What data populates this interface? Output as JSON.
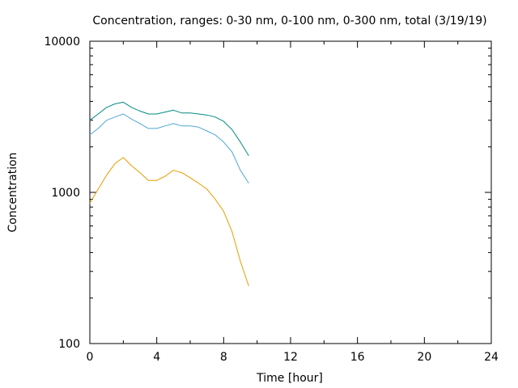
{
  "chart_data": {
    "type": "line",
    "title": "Concentration, ranges: 0-30 nm, 0-100 nm, 0-300 nm, total (3/19/19)",
    "xlabel": "Time [hour]",
    "ylabel": "Concentration",
    "xlim": [
      0,
      24
    ],
    "ylim": [
      100,
      10000
    ],
    "yscale": "log",
    "grid": false,
    "legend": "none",
    "x_ticks": [
      "0",
      "4",
      "8",
      "12",
      "16",
      "20",
      "24"
    ],
    "y_ticks": [
      "100",
      "1000",
      "10000"
    ],
    "series": [
      {
        "color": "#008b80",
        "x": [
          0,
          0.5,
          1,
          1.5,
          2,
          2.5,
          3,
          3.5,
          4,
          4.5,
          5,
          5.5,
          6,
          6.5,
          7,
          7.5,
          8,
          8.5,
          9,
          9.5
        ],
        "y": [
          3000,
          3300,
          3650,
          3850,
          3950,
          3650,
          3450,
          3300,
          3300,
          3400,
          3500,
          3350,
          3350,
          3300,
          3250,
          3150,
          2950,
          2600,
          2150,
          1750
        ]
      },
      {
        "color": "#4fa7d4",
        "x": [
          0,
          0.5,
          1,
          1.5,
          2,
          2.5,
          3,
          3.5,
          4,
          4.5,
          5,
          5.5,
          6,
          6.5,
          7,
          7.5,
          8,
          8.5,
          9,
          9.5
        ],
        "y": [
          2400,
          2650,
          3000,
          3150,
          3300,
          3050,
          2850,
          2650,
          2650,
          2750,
          2850,
          2750,
          2750,
          2700,
          2550,
          2400,
          2150,
          1850,
          1400,
          1150
        ]
      },
      {
        "color": "#e69d00",
        "x": [
          0,
          0.5,
          1,
          1.5,
          2,
          2.5,
          3,
          3.5,
          4,
          4.5,
          5,
          5.5,
          6,
          6.5,
          7,
          7.5,
          8,
          8.5,
          9,
          9.5
        ],
        "y": [
          850,
          1050,
          1300,
          1550,
          1700,
          1500,
          1350,
          1200,
          1200,
          1280,
          1400,
          1350,
          1250,
          1150,
          1050,
          900,
          750,
          550,
          350,
          240
        ]
      }
    ]
  }
}
